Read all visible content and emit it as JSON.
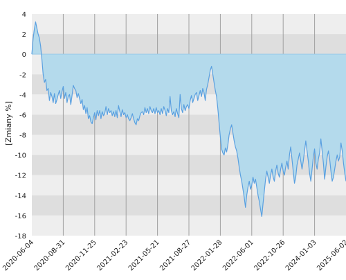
{
  "chart_data": {
    "type": "area",
    "title": "",
    "xlabel": "",
    "ylabel": "[Zmiany %]",
    "ylim": [
      -18,
      4
    ],
    "yticks": [
      4,
      2,
      0,
      -2,
      -4,
      -6,
      -8,
      -10,
      -12,
      -14,
      -16,
      -18
    ],
    "ytick_labels": [
      "4",
      "2",
      "0",
      "-2",
      "-4",
      "-6",
      "-8",
      "-10",
      "-12",
      "-14",
      "-16",
      "-18"
    ],
    "xlim": [
      "2020-06-04",
      "2025-06-02"
    ],
    "xtick_labels": [
      "2020-06-04",
      "2020-08-31",
      "2020-11-25",
      "2021-02-23",
      "2021-05-21",
      "2021-08-27",
      "2022-01-28",
      "2022-06-01",
      "2022-10-26",
      "2024-01-03",
      "2025-06-02"
    ],
    "grid": true,
    "legend": "none",
    "series": [
      {
        "values": [
          [
            0,
            0
          ],
          [
            2,
            1.5
          ],
          [
            4,
            2.5
          ],
          [
            6,
            3.2
          ],
          [
            8,
            2.6
          ],
          [
            10,
            2.0
          ],
          [
            12,
            1.6
          ],
          [
            14,
            0.8
          ],
          [
            16,
            -0.5
          ],
          [
            18,
            -2.0
          ],
          [
            20,
            -2.8
          ],
          [
            22,
            -2.5
          ],
          [
            24,
            -3.6
          ],
          [
            26,
            -3.4
          ],
          [
            28,
            -4.6
          ],
          [
            30,
            -3.8
          ],
          [
            32,
            -4.2
          ],
          [
            34,
            -4.8
          ],
          [
            36,
            -3.9
          ],
          [
            38,
            -4.9
          ],
          [
            40,
            -4.5
          ],
          [
            42,
            -4.0
          ],
          [
            44,
            -3.6
          ],
          [
            46,
            -4.4
          ],
          [
            48,
            -3.7
          ],
          [
            50,
            -3.2
          ],
          [
            52,
            -4.4
          ],
          [
            54,
            -3.8
          ],
          [
            56,
            -4.8
          ],
          [
            58,
            -4.2
          ],
          [
            60,
            -4.0
          ],
          [
            62,
            -5.0
          ],
          [
            64,
            -4.1
          ],
          [
            66,
            -3.1
          ],
          [
            68,
            -3.4
          ],
          [
            70,
            -3.6
          ],
          [
            72,
            -4.3
          ],
          [
            74,
            -3.9
          ],
          [
            76,
            -4.4
          ],
          [
            78,
            -4.9
          ],
          [
            80,
            -4.5
          ],
          [
            82,
            -5.5
          ],
          [
            84,
            -5.1
          ],
          [
            86,
            -5.9
          ],
          [
            88,
            -5.3
          ],
          [
            90,
            -6.4
          ],
          [
            92,
            -6.1
          ],
          [
            94,
            -6.7
          ],
          [
            96,
            -6.9
          ],
          [
            98,
            -6.3
          ],
          [
            100,
            -5.8
          ],
          [
            102,
            -6.5
          ],
          [
            104,
            -5.6
          ],
          [
            106,
            -6.1
          ],
          [
            108,
            -5.6
          ],
          [
            110,
            -6.4
          ],
          [
            112,
            -5.7
          ],
          [
            114,
            -6.1
          ],
          [
            116,
            -5.9
          ],
          [
            118,
            -5.2
          ],
          [
            120,
            -6.0
          ],
          [
            122,
            -5.4
          ],
          [
            124,
            -5.8
          ],
          [
            126,
            -5.6
          ],
          [
            128,
            -6.1
          ],
          [
            130,
            -5.7
          ],
          [
            132,
            -6.2
          ],
          [
            134,
            -5.6
          ],
          [
            136,
            -6.3
          ],
          [
            138,
            -5.1
          ],
          [
            140,
            -5.7
          ],
          [
            142,
            -6.2
          ],
          [
            144,
            -5.5
          ],
          [
            146,
            -6.0
          ],
          [
            148,
            -5.8
          ],
          [
            150,
            -6.3
          ],
          [
            152,
            -6.0
          ],
          [
            154,
            -6.4
          ],
          [
            156,
            -6.6
          ],
          [
            158,
            -6.3
          ],
          [
            160,
            -5.9
          ],
          [
            162,
            -6.4
          ],
          [
            164,
            -6.8
          ],
          [
            166,
            -7.0
          ],
          [
            168,
            -6.4
          ],
          [
            170,
            -6.6
          ],
          [
            172,
            -6.1
          ],
          [
            174,
            -5.8
          ],
          [
            176,
            -5.7
          ],
          [
            178,
            -6.0
          ],
          [
            180,
            -5.3
          ],
          [
            182,
            -5.8
          ],
          [
            184,
            -5.4
          ],
          [
            186,
            -5.9
          ],
          [
            188,
            -5.2
          ],
          [
            190,
            -5.6
          ],
          [
            192,
            -5.8
          ],
          [
            194,
            -5.4
          ],
          [
            196,
            -5.9
          ],
          [
            198,
            -5.3
          ],
          [
            200,
            -5.8
          ],
          [
            202,
            -5.6
          ],
          [
            204,
            -6.0
          ],
          [
            206,
            -5.4
          ],
          [
            208,
            -5.9
          ],
          [
            210,
            -5.2
          ],
          [
            212,
            -5.6
          ],
          [
            214,
            -6.1
          ],
          [
            216,
            -5.4
          ],
          [
            218,
            -5.8
          ],
          [
            220,
            -4.2
          ],
          [
            222,
            -5.6
          ],
          [
            224,
            -6.0
          ],
          [
            226,
            -5.7
          ],
          [
            228,
            -6.2
          ],
          [
            230,
            -5.4
          ],
          [
            232,
            -5.9
          ],
          [
            234,
            -6.3
          ],
          [
            236,
            -4.0
          ],
          [
            238,
            -5.4
          ],
          [
            240,
            -5.8
          ],
          [
            242,
            -5.0
          ],
          [
            244,
            -5.6
          ],
          [
            246,
            -5.2
          ],
          [
            248,
            -5.0
          ],
          [
            250,
            -5.4
          ],
          [
            252,
            -4.6
          ],
          [
            254,
            -4.1
          ],
          [
            256,
            -4.8
          ],
          [
            258,
            -4.4
          ],
          [
            260,
            -4.0
          ],
          [
            262,
            -3.8
          ],
          [
            264,
            -4.6
          ],
          [
            266,
            -4.1
          ],
          [
            268,
            -3.6
          ],
          [
            270,
            -4.2
          ],
          [
            272,
            -3.4
          ],
          [
            274,
            -3.8
          ],
          [
            276,
            -4.6
          ],
          [
            278,
            -3.5
          ],
          [
            280,
            -3.0
          ],
          [
            282,
            -2.3
          ],
          [
            284,
            -1.6
          ],
          [
            286,
            -1.2
          ],
          [
            288,
            -2.0
          ],
          [
            290,
            -2.8
          ],
          [
            292,
            -3.6
          ],
          [
            294,
            -4.2
          ],
          [
            296,
            -5.4
          ],
          [
            298,
            -6.8
          ],
          [
            300,
            -8.2
          ],
          [
            302,
            -9.4
          ],
          [
            304,
            -9.8
          ],
          [
            306,
            -10.0
          ],
          [
            308,
            -9.3
          ],
          [
            310,
            -9.7
          ],
          [
            312,
            -9.0
          ],
          [
            314,
            -8.0
          ],
          [
            316,
            -7.4
          ],
          [
            318,
            -7.0
          ],
          [
            320,
            -7.8
          ],
          [
            322,
            -8.6
          ],
          [
            324,
            -9.2
          ],
          [
            326,
            -9.6
          ],
          [
            328,
            -10.3
          ],
          [
            330,
            -11.2
          ],
          [
            332,
            -12.0
          ],
          [
            334,
            -12.6
          ],
          [
            336,
            -13.4
          ],
          [
            338,
            -14.2
          ],
          [
            340,
            -15.2
          ],
          [
            342,
            -14.0
          ],
          [
            344,
            -13.2
          ],
          [
            346,
            -12.6
          ],
          [
            348,
            -13.4
          ],
          [
            350,
            -13.0
          ],
          [
            352,
            -12.2
          ],
          [
            354,
            -12.8
          ],
          [
            356,
            -12.4
          ],
          [
            358,
            -13.2
          ],
          [
            360,
            -14.0
          ],
          [
            362,
            -14.6
          ],
          [
            364,
            -15.4
          ],
          [
            366,
            -16.1
          ],
          [
            368,
            -14.8
          ],
          [
            370,
            -13.6
          ],
          [
            372,
            -12.4
          ],
          [
            374,
            -11.6
          ],
          [
            376,
            -12.2
          ],
          [
            378,
            -12.8
          ],
          [
            380,
            -12.0
          ],
          [
            382,
            -11.4
          ],
          [
            384,
            -12.2
          ],
          [
            386,
            -12.6
          ],
          [
            388,
            -11.6
          ],
          [
            390,
            -11.0
          ],
          [
            392,
            -11.8
          ],
          [
            394,
            -12.2
          ],
          [
            396,
            -11.4
          ],
          [
            398,
            -10.8
          ],
          [
            400,
            -11.6
          ],
          [
            402,
            -12.0
          ],
          [
            404,
            -11.2
          ],
          [
            406,
            -10.6
          ],
          [
            408,
            -11.4
          ],
          [
            410,
            -10.0
          ],
          [
            412,
            -9.2
          ],
          [
            414,
            -10.4
          ],
          [
            416,
            -11.6
          ],
          [
            418,
            -12.8
          ],
          [
            420,
            -12.2
          ],
          [
            422,
            -11.0
          ],
          [
            424,
            -10.4
          ],
          [
            426,
            -9.8
          ],
          [
            428,
            -10.6
          ],
          [
            430,
            -11.4
          ],
          [
            432,
            -10.6
          ],
          [
            434,
            -9.6
          ],
          [
            436,
            -8.6
          ],
          [
            438,
            -9.6
          ],
          [
            440,
            -10.6
          ],
          [
            442,
            -11.8
          ],
          [
            444,
            -12.6
          ],
          [
            446,
            -11.4
          ],
          [
            448,
            -10.2
          ],
          [
            450,
            -9.4
          ],
          [
            452,
            -10.8
          ],
          [
            454,
            -11.4
          ],
          [
            456,
            -10.4
          ],
          [
            458,
            -9.8
          ],
          [
            460,
            -8.4
          ],
          [
            462,
            -9.6
          ],
          [
            464,
            -10.8
          ],
          [
            466,
            -12.4
          ],
          [
            468,
            -11.2
          ],
          [
            470,
            -10.2
          ],
          [
            472,
            -9.6
          ],
          [
            474,
            -10.4
          ],
          [
            476,
            -11.6
          ],
          [
            478,
            -12.6
          ],
          [
            480,
            -12.2
          ],
          [
            482,
            -11.4
          ],
          [
            484,
            -10.6
          ],
          [
            486,
            -10.0
          ],
          [
            488,
            -10.6
          ],
          [
            490,
            -10.2
          ],
          [
            492,
            -8.8
          ],
          [
            494,
            -9.6
          ],
          [
            496,
            -10.8
          ],
          [
            498,
            -11.8
          ],
          [
            500,
            -12.6
          ]
        ]
      }
    ],
    "colors": {
      "line": "#5aa0e0",
      "fill": "#b4daec",
      "band_light": "#eeeeee",
      "band_dark": "#dedede",
      "gridline": "#a0a0a0",
      "zeroline": "#9acbe8"
    }
  }
}
